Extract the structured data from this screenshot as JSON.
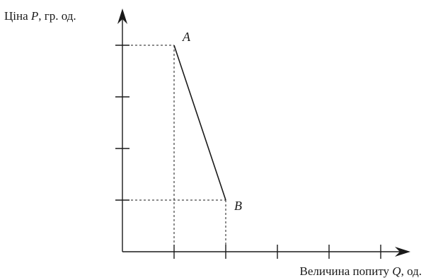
{
  "chart_data": {
    "type": "line",
    "title": "",
    "ylabel": {
      "prefix": "Ціна ",
      "symbol": "P",
      "suffix": ", гр. од."
    },
    "xlabel": {
      "prefix": "Величина попиту ",
      "symbol": "Q",
      "suffix": ", од."
    },
    "x_ticks": [
      1,
      2,
      3,
      4,
      5
    ],
    "y_ticks": [
      1,
      2,
      3,
      4
    ],
    "xlim": [
      0,
      5.5
    ],
    "ylim": [
      0,
      4.35
    ],
    "tick_labels_shown": false,
    "grid": false,
    "series": [
      {
        "points": [
          {
            "label": "A",
            "x": 1,
            "y": 4
          },
          {
            "label": "B",
            "x": 2,
            "y": 1
          }
        ]
      }
    ],
    "guides": "dashed"
  },
  "colors": {
    "ink": "#1a1a1a",
    "background": "#ffffff"
  }
}
